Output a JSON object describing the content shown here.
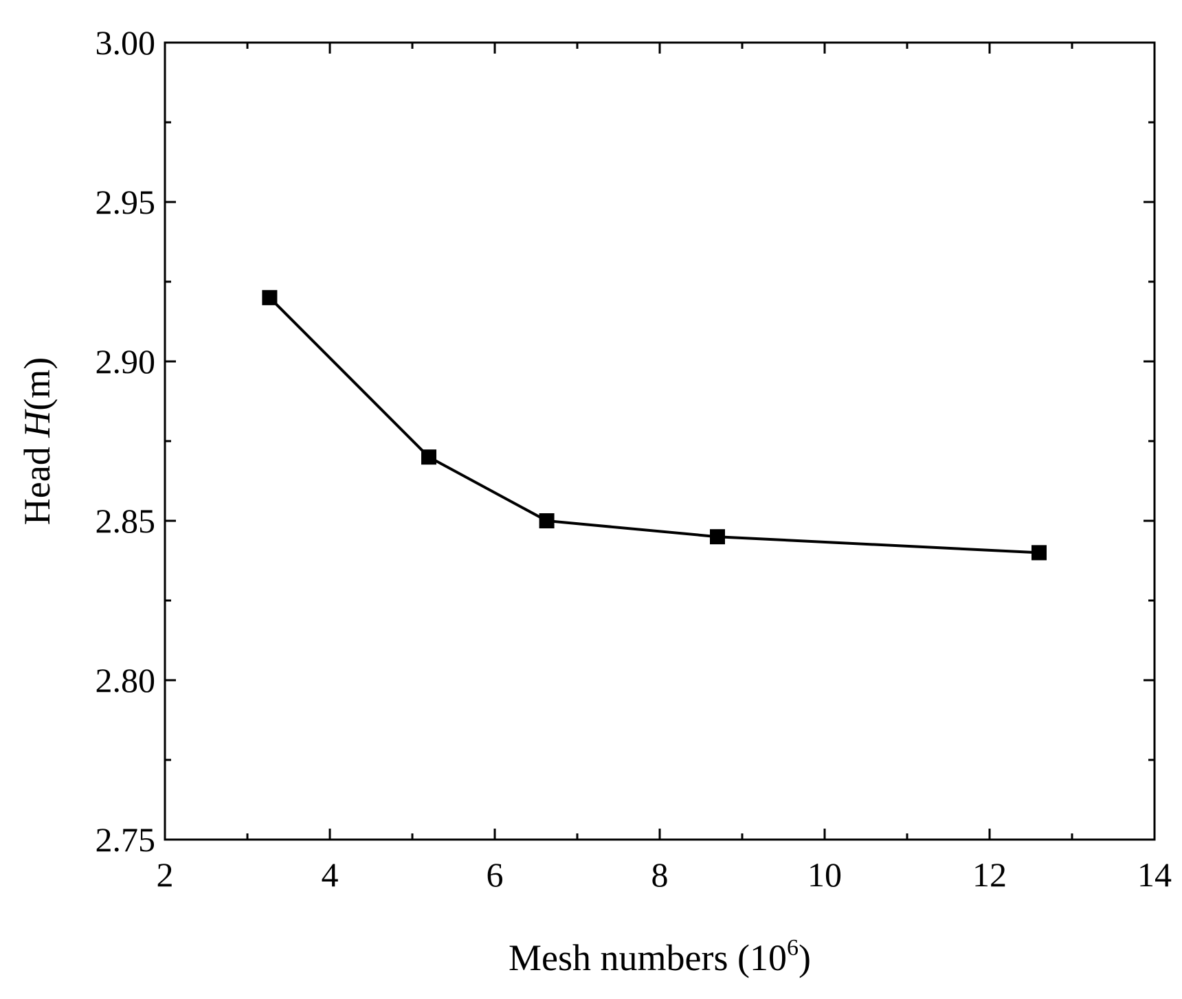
{
  "chart_data": {
    "type": "line",
    "xlabel": {
      "prefix": "Mesh numbers (10",
      "superscript": "6",
      "suffix": ")"
    },
    "ylabel": {
      "prefix": "Head ",
      "italic": "H",
      "suffix": "(m)"
    },
    "xlim": [
      2,
      14
    ],
    "ylim": [
      2.75,
      3.0
    ],
    "x_major_ticks": [
      2,
      4,
      6,
      8,
      10,
      12,
      14
    ],
    "x_tick_labels": [
      "2",
      "4",
      "6",
      "8",
      "10",
      "12",
      "14"
    ],
    "x_minor_ticks": [
      3,
      5,
      7,
      9,
      11,
      13
    ],
    "y_major_ticks": [
      2.75,
      2.8,
      2.85,
      2.9,
      2.95,
      3.0
    ],
    "y_tick_labels": [
      "2.75",
      "2.80",
      "2.85",
      "2.90",
      "2.95",
      "3.00"
    ],
    "y_minor_ticks": [
      2.775,
      2.825,
      2.875,
      2.925,
      2.975
    ],
    "grid": false,
    "marker": "square",
    "series": [
      {
        "x": [
          3.27,
          5.2,
          6.63,
          8.7,
          12.6
        ],
        "y": [
          2.92,
          2.87,
          2.85,
          2.845,
          2.84
        ]
      }
    ]
  }
}
